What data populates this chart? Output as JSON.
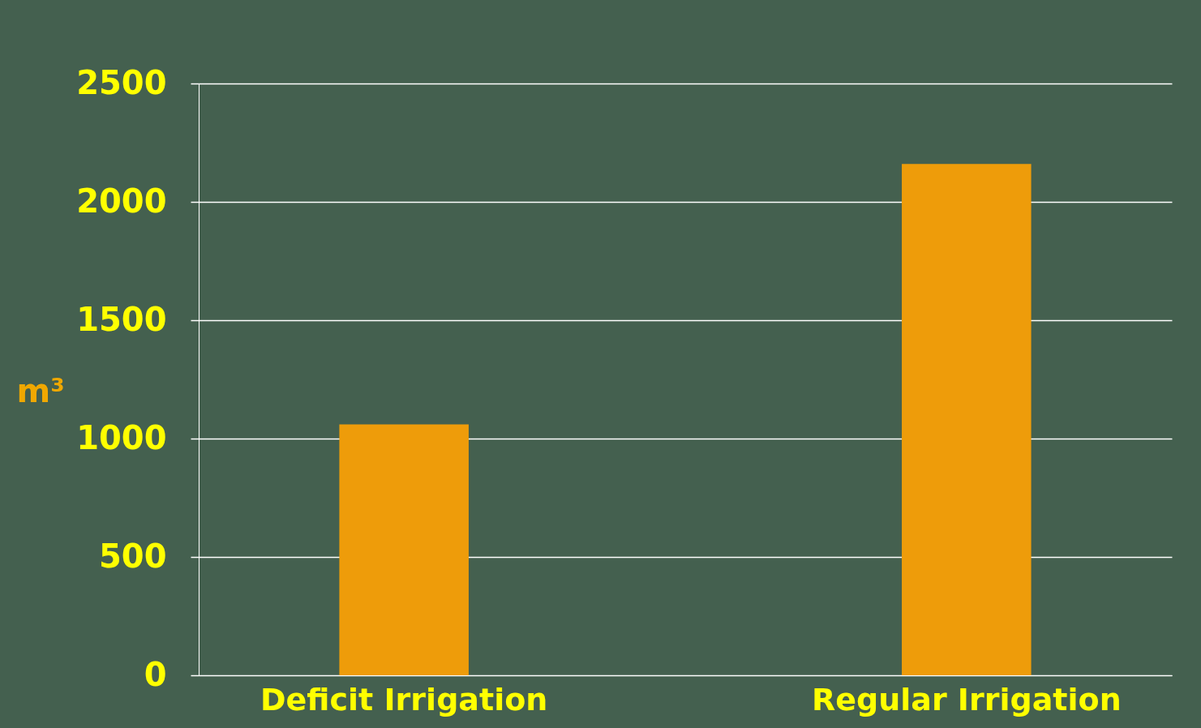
{
  "chart_data": {
    "type": "bar",
    "ylabel": "m³",
    "categories": [
      "Deficit Irrigation",
      "Regular Irrigation"
    ],
    "values": [
      1060,
      2160
    ],
    "color": "#ee9c0a",
    "ylim": [
      0,
      2500
    ],
    "yticks": [
      0,
      500,
      1000,
      1500,
      2000,
      2500
    ],
    "grid": true
  }
}
